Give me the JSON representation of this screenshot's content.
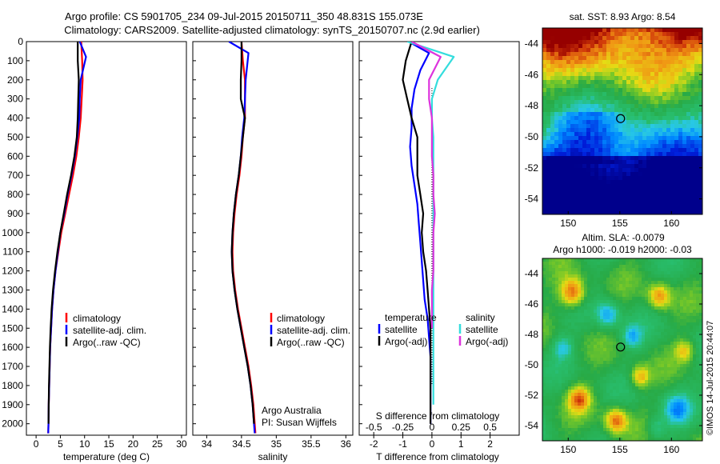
{
  "header": {
    "line1": "Argo profile: CS 5901705_234 09-Jul-2015 20150711_350 48.831S 155.073E",
    "line2": "Climatology: CARS2009. Satellite-adjusted climatology: synTS_20150707.nc (2.9d earlier)"
  },
  "colors": {
    "climatology": "#ff0000",
    "satellite": "#0000ff",
    "argo": "#000000",
    "satellite_salinity": "#33dddd",
    "argo_salinity": "#dd33dd"
  },
  "depth_ticks": [
    "0",
    "100",
    "200",
    "300",
    "400",
    "500",
    "600",
    "700",
    "800",
    "900",
    "1000",
    "1100",
    "1200",
    "1300",
    "1400",
    "1500",
    "1600",
    "1700",
    "1800",
    "1900",
    "2000"
  ],
  "panel_temp": {
    "xlabel": "temperature (deg C)",
    "xticks": [
      "0",
      "5",
      "10",
      "15",
      "20",
      "25",
      "30"
    ],
    "legend": [
      "climatology",
      "satellite-adj. clim.",
      "Argo(..raw -QC)"
    ]
  },
  "panel_sal": {
    "xlabel": "salinity",
    "xticks": [
      "34",
      "34.5",
      "35",
      "35.5",
      "36"
    ],
    "legend": [
      "climatology",
      "satellite-adj. clim.",
      "Argo(..raw -QC)"
    ],
    "credit1": "Argo Australia",
    "credit2": "PI: Susan Wijffels"
  },
  "panel_diff": {
    "xlabel": "T difference from climatology",
    "toplabel": "S difference from climatology",
    "xticks_T": [
      "-2",
      "-1",
      "0",
      "1",
      "2"
    ],
    "xticks_S": [
      "-0.5",
      "-0.25",
      "0",
      "0.25",
      "0.5"
    ],
    "legend_temp_header": "temperature",
    "legend_sal_header": "salinity",
    "legend_temp": [
      "satellite",
      "Argo(-adj)"
    ],
    "legend_sal": [
      "satellite",
      "Argo(-adj)"
    ]
  },
  "map_sst": {
    "title": "sat. SST: 8.93  Argo: 8.54",
    "yticks": [
      "-44",
      "-46",
      "-48",
      "-50",
      "-52",
      "-54"
    ],
    "xticks": [
      "150",
      "155",
      "160"
    ]
  },
  "map_sla": {
    "title1": "Altim. SLA: -0.0079",
    "title2": "Argo h1000: -0.019 h2000: -0.03",
    "yticks": [
      "-44",
      "-46",
      "-48",
      "-50",
      "-52",
      "-54"
    ],
    "xticks": [
      "150",
      "155",
      "160"
    ],
    "stamp": "©IMOS 14-Jul-2015 20:44:07"
  },
  "chart_data": [
    {
      "type": "line",
      "title": "",
      "xlabel": "temperature (deg C)",
      "ylabel": "",
      "xlim": [
        -2,
        31
      ],
      "ylim": [
        2060,
        0
      ],
      "series": [
        {
          "name": "climatology",
          "x": [
            9.3,
            9.5,
            9.6,
            9.4,
            9.2,
            8.8,
            8.3,
            7.6,
            6.8,
            6.0,
            5.2,
            4.6,
            4.0,
            3.6,
            3.3,
            3.1,
            2.9,
            2.8,
            2.7,
            2.6,
            2.55,
            2.5
          ],
          "y": [
            0,
            100,
            200,
            300,
            400,
            500,
            600,
            700,
            800,
            900,
            1000,
            1100,
            1200,
            1300,
            1400,
            1500,
            1600,
            1700,
            1800,
            1900,
            2000,
            2050
          ]
        },
        {
          "name": "satellite-adj. clim.",
          "x": [
            9.0,
            10.3,
            9.2,
            9.0,
            8.9,
            8.5,
            8.0,
            7.3,
            6.5,
            5.8,
            5.0,
            4.5,
            4.0,
            3.6,
            3.3,
            3.1,
            2.9,
            2.8,
            2.7,
            2.6,
            2.55,
            2.5
          ],
          "y": [
            0,
            80,
            200,
            300,
            400,
            500,
            600,
            700,
            800,
            900,
            1000,
            1100,
            1200,
            1300,
            1400,
            1500,
            1600,
            1700,
            1800,
            1900,
            2000,
            2050
          ]
        },
        {
          "name": "Argo(..raw -QC)",
          "x": [
            8.6,
            8.6,
            8.8,
            8.7,
            8.6,
            8.4,
            7.9,
            7.2,
            6.4,
            5.7,
            5.0,
            4.4,
            3.9,
            3.5,
            3.2,
            3.0,
            2.85,
            2.75,
            2.65,
            2.6,
            2.55
          ],
          "y": [
            0,
            100,
            200,
            300,
            400,
            500,
            600,
            700,
            800,
            900,
            1000,
            1100,
            1200,
            1300,
            1400,
            1500,
            1600,
            1700,
            1800,
            1900,
            2000
          ]
        }
      ]
    },
    {
      "type": "line",
      "title": "",
      "xlabel": "salinity",
      "ylabel": "",
      "xlim": [
        33.8,
        36.1
      ],
      "ylim": [
        2060,
        0
      ],
      "series": [
        {
          "name": "climatology",
          "x": [
            34.5,
            34.52,
            34.55,
            34.55,
            34.55,
            34.52,
            34.5,
            34.47,
            34.43,
            34.4,
            34.38,
            34.37,
            34.38,
            34.41,
            34.45,
            34.5,
            34.55,
            34.6,
            34.64,
            34.67,
            34.69,
            34.7
          ],
          "y": [
            0,
            100,
            200,
            300,
            400,
            500,
            600,
            700,
            800,
            900,
            1000,
            1100,
            1200,
            1300,
            1400,
            1500,
            1600,
            1700,
            1800,
            1900,
            2000,
            2050
          ]
        },
        {
          "name": "satellite-adj. clim.",
          "x": [
            34.32,
            34.6,
            34.56,
            34.55,
            34.54,
            34.51,
            34.49,
            34.46,
            34.42,
            34.39,
            34.37,
            34.36,
            34.37,
            34.4,
            34.44,
            34.49,
            34.54,
            34.59,
            34.63,
            34.66,
            34.68,
            34.69
          ],
          "y": [
            0,
            60,
            200,
            300,
            400,
            500,
            600,
            700,
            800,
            900,
            1000,
            1100,
            1200,
            1300,
            1400,
            1500,
            1600,
            1700,
            1800,
            1900,
            2000,
            2050
          ]
        },
        {
          "name": "Argo(..raw -QC)",
          "x": [
            34.5,
            34.5,
            34.49,
            34.49,
            34.55,
            34.52,
            34.49,
            34.46,
            34.42,
            34.39,
            34.37,
            34.36,
            34.37,
            34.4,
            34.44,
            34.49,
            34.54,
            34.59,
            34.63,
            34.66,
            34.68
          ],
          "y": [
            0,
            100,
            200,
            300,
            400,
            500,
            600,
            700,
            800,
            900,
            1000,
            1100,
            1200,
            1300,
            1400,
            1500,
            1600,
            1700,
            1800,
            1900,
            2000
          ]
        }
      ]
    },
    {
      "type": "line",
      "title": "",
      "xlabel": "T difference from climatology",
      "ylabel": "",
      "xlim": [
        -2.5,
        3
      ],
      "ylim": [
        2060,
        0
      ],
      "series": [
        {
          "name": "temperature satellite",
          "x": [
            -0.8,
            -0.1,
            -0.4,
            -0.6,
            -0.7,
            -0.7,
            -0.75,
            -0.7,
            -0.6,
            -0.5,
            -0.45,
            -0.4,
            -0.35,
            -0.3,
            -0.25,
            -0.15,
            -0.1,
            -0.05,
            -0.05,
            -0.05,
            -0.05
          ],
          "y": [
            0,
            60,
            150,
            250,
            350,
            450,
            550,
            650,
            750,
            850,
            950,
            1050,
            1150,
            1250,
            1350,
            1450,
            1550,
            1650,
            1750,
            1850,
            2000
          ]
        },
        {
          "name": "temperature Argo(-adj)",
          "x": [
            -0.7,
            -0.9,
            -1.0,
            -0.85,
            -0.7,
            -0.5,
            -0.5,
            -0.5,
            -0.4,
            -0.3,
            -0.35,
            -0.3,
            -0.2,
            -0.15,
            -0.1,
            -0.05,
            -0.05,
            -0.05,
            -0.05,
            -0.05,
            -0.05
          ],
          "y": [
            0,
            100,
            200,
            300,
            400,
            500,
            600,
            700,
            800,
            900,
            1000,
            1100,
            1200,
            1300,
            1400,
            1500,
            1600,
            1700,
            1800,
            1900,
            2000
          ]
        },
        {
          "name": "salinity satellite",
          "x": [
            -0.85,
            0.75,
            0.2,
            0.0,
            0.0,
            0.05,
            0.05,
            0.05,
            0.05,
            0.05,
            0.05,
            0.05,
            0.05,
            0.05,
            0.05,
            0.05,
            0.05,
            0.05,
            0.05,
            0.05
          ],
          "y": [
            0,
            80,
            200,
            300,
            400,
            500,
            600,
            700,
            800,
            900,
            1000,
            1100,
            1200,
            1300,
            1400,
            1500,
            1600,
            1700,
            1800,
            1900
          ]
        },
        {
          "name": "salinity Argo(-adj)",
          "x": [
            -0.7,
            0.3,
            -0.1,
            -0.1,
            0.0,
            0.0,
            0.0,
            0.05,
            0.05,
            0.1,
            0.05,
            0.05,
            0.05,
            0.0,
            0.0,
            0.0
          ],
          "y": [
            0,
            80,
            200,
            300,
            400,
            500,
            600,
            700,
            800,
            900,
            1000,
            1100,
            1200,
            1300,
            1400,
            1500
          ]
        }
      ]
    },
    {
      "type": "heatmap",
      "title": "sat. SST: 8.93  Argo: 8.54",
      "xlabel": "",
      "ylabel": "",
      "xlim": [
        147.5,
        163
      ],
      "ylim": [
        -55,
        -43
      ],
      "marker": {
        "lon": 155.073,
        "lat": -48.831
      }
    },
    {
      "type": "heatmap",
      "title": "Altim. SLA: -0.0079",
      "xlabel": "",
      "ylabel": "",
      "xlim": [
        147.5,
        163
      ],
      "ylim": [
        -55,
        -43
      ],
      "marker": {
        "lon": 155.073,
        "lat": -48.831
      }
    }
  ]
}
